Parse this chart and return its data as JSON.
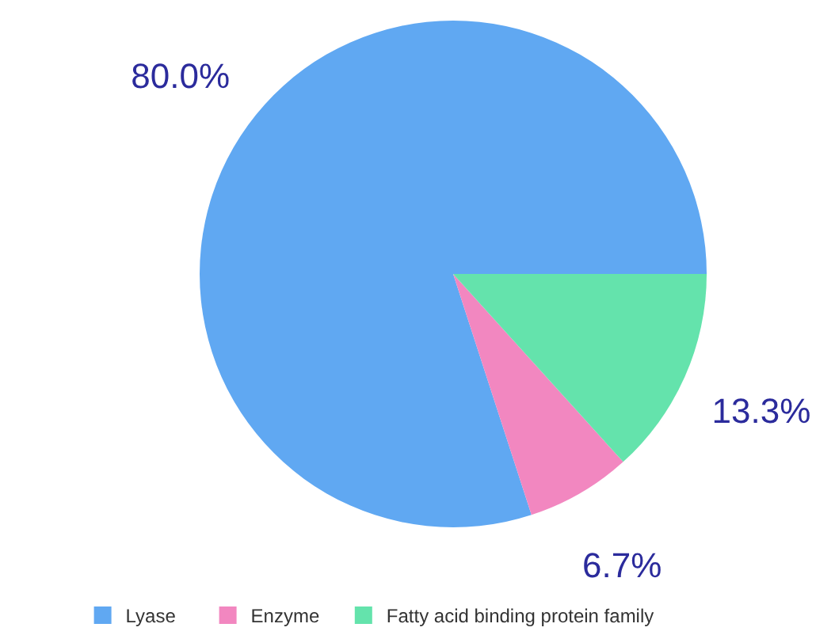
{
  "chart_data": {
    "type": "pie",
    "categories": [
      "Lyase",
      "Enzyme",
      "Fatty acid binding protein family"
    ],
    "values": [
      80,
      6.7,
      13.3
    ],
    "value_labels": [
      "80.0%",
      "6.7%",
      "13.3%"
    ],
    "colors": [
      "#60a8f2",
      "#f287c0",
      "#64e3ac"
    ],
    "legend": "bottom"
  }
}
